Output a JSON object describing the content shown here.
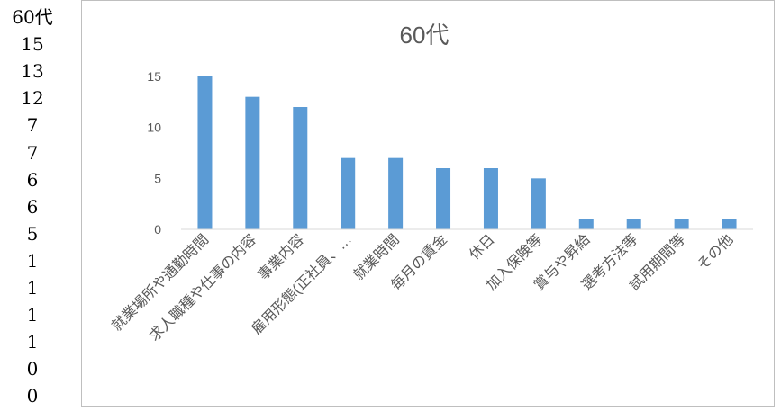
{
  "sheet_column": {
    "cells": [
      "60代",
      "15",
      "13",
      "12",
      "7",
      "7",
      "6",
      "6",
      "5",
      "1",
      "1",
      "1",
      "1",
      "0",
      "0"
    ]
  },
  "chart_data": {
    "type": "bar",
    "title": "60代",
    "categories": [
      "就業場所や通勤時間",
      "求人職種や仕事の内容",
      "事業内容",
      "雇用形態(正社員、…",
      "就業時間",
      "毎月の賃金",
      "休日",
      "加入保険等",
      "賞与や昇給",
      "選考方法等",
      "試用期間等",
      "その他"
    ],
    "values": [
      15,
      13,
      12,
      7,
      7,
      6,
      6,
      5,
      1,
      1,
      1,
      1
    ],
    "ylim": [
      0,
      15
    ],
    "yticks": [
      0,
      5,
      10,
      15
    ],
    "grid": false,
    "legend": "none",
    "bar_color": "#5b9bd5"
  }
}
